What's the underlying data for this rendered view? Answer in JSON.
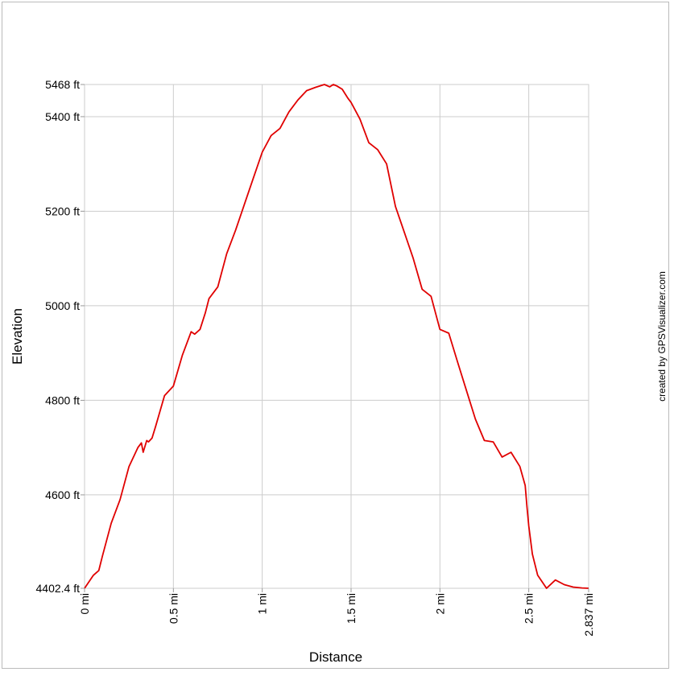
{
  "chart_data": {
    "type": "line",
    "title": "",
    "xlabel": "Distance",
    "ylabel": "Elevation",
    "credit": "created by GPSVisualizer.com",
    "xlim": [
      0,
      2.837
    ],
    "ylim": [
      4402.4,
      5468
    ],
    "x_ticks": [
      {
        "value": 0,
        "label": "0 mi"
      },
      {
        "value": 0.5,
        "label": "0.5 mi"
      },
      {
        "value": 1,
        "label": "1 mi"
      },
      {
        "value": 1.5,
        "label": "1.5 mi"
      },
      {
        "value": 2,
        "label": "2 mi"
      },
      {
        "value": 2.5,
        "label": "2.5 mi"
      },
      {
        "value": 2.837,
        "label": "2.837 mi"
      }
    ],
    "y_ticks": [
      {
        "value": 4402.4,
        "label": "4402.4 ft"
      },
      {
        "value": 4600,
        "label": "4600 ft"
      },
      {
        "value": 4800,
        "label": "4800 ft"
      },
      {
        "value": 5000,
        "label": "5000 ft"
      },
      {
        "value": 5200,
        "label": "5200 ft"
      },
      {
        "value": 5400,
        "label": "5400 ft"
      },
      {
        "value": 5468,
        "label": "5468 ft"
      }
    ],
    "grid": true,
    "colors": {
      "line": "#e00000",
      "grid": "#cccccc",
      "frame": "#bbbbbb"
    },
    "series": [
      {
        "x": [
          0,
          0.05,
          0.08,
          0.1,
          0.15,
          0.2,
          0.25,
          0.3,
          0.32,
          0.33,
          0.35,
          0.36,
          0.38,
          0.4,
          0.45,
          0.5,
          0.55,
          0.6,
          0.62,
          0.65,
          0.68,
          0.7,
          0.75,
          0.8,
          0.85,
          0.9,
          0.95,
          1.0,
          1.05,
          1.1,
          1.15,
          1.2,
          1.25,
          1.3,
          1.35,
          1.38,
          1.4,
          1.42,
          1.45,
          1.48,
          1.5,
          1.55,
          1.6,
          1.65,
          1.7,
          1.75,
          1.8,
          1.85,
          1.9,
          1.95,
          2.0,
          2.05,
          2.1,
          2.15,
          2.2,
          2.25,
          2.3,
          2.35,
          2.4,
          2.45,
          2.48,
          2.49,
          2.5,
          2.52,
          2.55,
          2.6,
          2.65,
          2.7,
          2.75,
          2.8,
          2.837
        ],
        "y": [
          4402.4,
          4430,
          4440,
          4470,
          4540,
          4590,
          4660,
          4700,
          4710,
          4690,
          4715,
          4712,
          4720,
          4745,
          4810,
          4830,
          4895,
          4945,
          4940,
          4950,
          4985,
          5015,
          5040,
          5110,
          5160,
          5215,
          5270,
          5325,
          5360,
          5375,
          5410,
          5435,
          5455,
          5462,
          5468,
          5463,
          5468,
          5465,
          5458,
          5440,
          5430,
          5395,
          5345,
          5330,
          5300,
          5210,
          5155,
          5100,
          5035,
          5020,
          4950,
          4942,
          4880,
          4820,
          4760,
          4715,
          4712,
          4680,
          4690,
          4660,
          4620,
          4575,
          4535,
          4475,
          4430,
          4402.4,
          4420,
          4410,
          4405,
          4403,
          4402.4
        ]
      }
    ]
  }
}
